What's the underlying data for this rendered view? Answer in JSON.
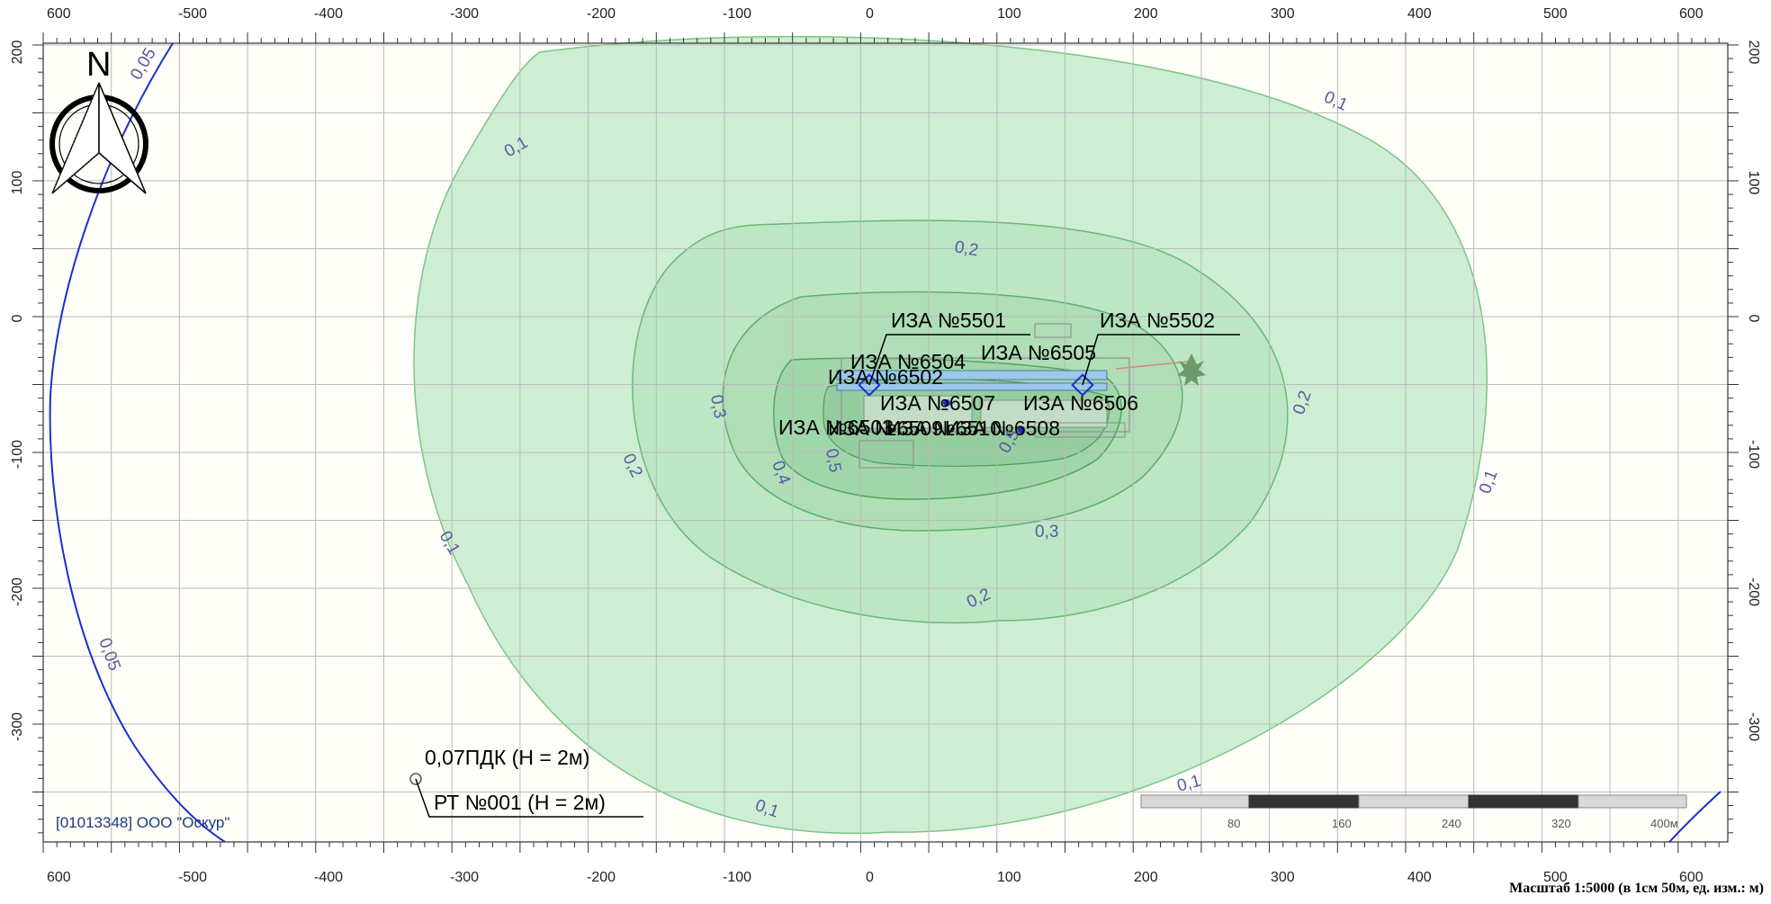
{
  "axis": {
    "x_labels": [
      "600",
      "-500",
      "-400",
      "-300",
      "-200",
      "-100",
      "0",
      "100",
      "200",
      "300",
      "400",
      "500",
      "600"
    ],
    "y_left_labels": [
      "200",
      "100",
      "0",
      "-100",
      "-200",
      "-300"
    ],
    "y_right_labels": [
      "200",
      "100",
      "0",
      "-100",
      "-200",
      "-300"
    ]
  },
  "compass": {
    "letter": "N"
  },
  "iso_labels": [
    "0,05",
    "0,05",
    "0,1",
    "0,1",
    "0,1",
    "0,1",
    "0,1",
    "0,1",
    "0,2",
    "0,2",
    "0,2",
    "0,2",
    "0,3",
    "0,3",
    "0,4",
    "0,5",
    "0,5"
  ],
  "sources": [
    "ИЗА №5501",
    "ИЗА №5502",
    "ИЗА №6504",
    "ИЗА №6505",
    "ИЗА №6502",
    "ИЗА №6507",
    "ИЗА №6506",
    "ИЗА №6503",
    "ИЗА №6509",
    "ИЗА №6508",
    "ИЗА №6510"
  ],
  "point": {
    "value": "0,07ПДК (Н = 2м)",
    "name": "РТ №001 (Н = 2м)"
  },
  "organization": "[01013348] ООО \"Оскур\"",
  "scalebar": {
    "labels": [
      "80",
      "160",
      "240",
      "320",
      "400м"
    ]
  },
  "scale_caption": "Масштаб 1:5000 (в 1см 50м, ед. изм.: м)",
  "colors": {
    "zone": "#c8f0cc",
    "isoline": "#4caa5a",
    "boundary": "#1a2fd0",
    "grid": "#b8b8b8"
  }
}
